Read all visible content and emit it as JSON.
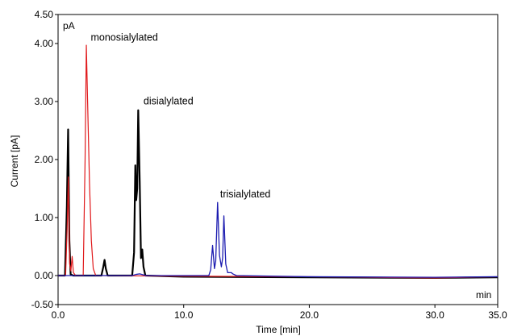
{
  "chart_data": {
    "type": "line",
    "xlabel": "Time [min]",
    "ylabel": "Current [pA]",
    "x_unit": "min",
    "y_unit": "pA",
    "xlim": [
      0.0,
      35.0
    ],
    "ylim": [
      -0.5,
      4.5
    ],
    "x_ticks": [
      "0.0",
      "10.0",
      "20.0",
      "30.0",
      "35.0"
    ],
    "y_ticks": [
      "-0.50",
      "0.00",
      "1.00",
      "2.00",
      "3.00",
      "4.00",
      "4.50"
    ],
    "grid": false,
    "annotations": [
      {
        "text": "monosialylated",
        "x": 2.6,
        "y": 4.05
      },
      {
        "text": "disialylated",
        "x": 6.8,
        "y": 2.95
      },
      {
        "text": "trisialylated",
        "x": 12.9,
        "y": 1.35
      }
    ],
    "series": [
      {
        "color": "#000000",
        "width": 2.2,
        "points": [
          [
            0,
            0.0
          ],
          [
            0.55,
            0.0
          ],
          [
            0.7,
            1.2
          ],
          [
            0.8,
            2.52
          ],
          [
            0.9,
            0.6
          ],
          [
            1.0,
            0.02
          ],
          [
            1.2,
            0.0
          ],
          [
            3.45,
            0.0
          ],
          [
            3.6,
            0.15
          ],
          [
            3.7,
            0.27
          ],
          [
            3.8,
            0.12
          ],
          [
            3.95,
            0.0
          ],
          [
            5.9,
            0.0
          ],
          [
            6.05,
            0.4
          ],
          [
            6.15,
            1.9
          ],
          [
            6.22,
            1.3
          ],
          [
            6.3,
            1.5
          ],
          [
            6.38,
            2.85
          ],
          [
            6.5,
            1.6
          ],
          [
            6.6,
            0.3
          ],
          [
            6.7,
            0.45
          ],
          [
            6.8,
            0.15
          ],
          [
            6.95,
            0.0
          ],
          [
            10,
            -0.02
          ],
          [
            20,
            -0.03
          ],
          [
            30,
            -0.04
          ],
          [
            35,
            -0.03
          ]
        ]
      },
      {
        "color": "#e0191b",
        "width": 1.2,
        "points": [
          [
            0,
            0.0
          ],
          [
            0.6,
            0.0
          ],
          [
            0.72,
            0.8
          ],
          [
            0.82,
            1.7
          ],
          [
            0.92,
            0.2
          ],
          [
            1.02,
            0.08
          ],
          [
            1.12,
            0.33
          ],
          [
            1.22,
            0.05
          ],
          [
            1.4,
            0.0
          ],
          [
            2.0,
            0.0
          ],
          [
            2.15,
            2.0
          ],
          [
            2.25,
            3.97
          ],
          [
            2.35,
            3.0
          ],
          [
            2.5,
            1.6
          ],
          [
            2.65,
            0.6
          ],
          [
            2.8,
            0.12
          ],
          [
            3.0,
            0.0
          ],
          [
            10,
            -0.01
          ],
          [
            20,
            -0.02
          ],
          [
            30,
            -0.04
          ],
          [
            35,
            -0.02
          ]
        ]
      },
      {
        "color": "#1b1bb0",
        "width": 1.3,
        "points": [
          [
            0,
            0.0
          ],
          [
            5.9,
            0.0
          ],
          [
            6.2,
            0.02
          ],
          [
            6.5,
            0.03
          ],
          [
            7.0,
            0.0
          ],
          [
            12.0,
            0.0
          ],
          [
            12.15,
            0.1
          ],
          [
            12.3,
            0.52
          ],
          [
            12.45,
            0.12
          ],
          [
            12.55,
            0.25
          ],
          [
            12.7,
            1.26
          ],
          [
            12.85,
            0.35
          ],
          [
            13.0,
            0.15
          ],
          [
            13.1,
            0.3
          ],
          [
            13.2,
            1.03
          ],
          [
            13.35,
            0.2
          ],
          [
            13.5,
            0.05
          ],
          [
            13.8,
            0.05
          ],
          [
            13.9,
            0.03
          ],
          [
            14.2,
            0.0
          ],
          [
            20,
            -0.02
          ],
          [
            30,
            -0.03
          ],
          [
            35,
            -0.02
          ]
        ]
      }
    ]
  }
}
